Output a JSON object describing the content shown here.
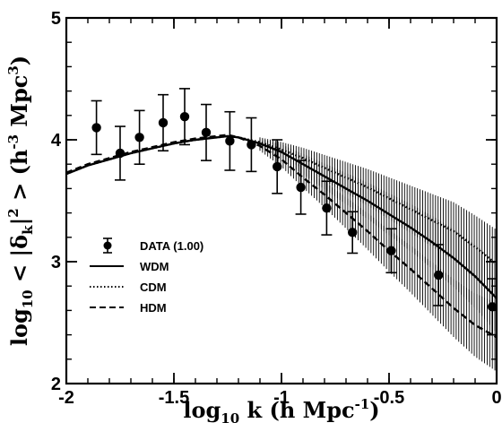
{
  "chart_data": {
    "type": "scatter",
    "title": "",
    "xlabel": {
      "main": "log",
      "sub": "10",
      "rest": " k (h Mpc",
      "sup": "-1",
      "close": ")"
    },
    "ylabel": {
      "main": "log",
      "sub": "10",
      "rest1": " < |δ",
      "sub2": "k",
      "rest2": "|",
      "sup": "2",
      "rest3": " > (h",
      "sup2": "-3",
      "rest4": " Mpc",
      "sup3": "3",
      "close": ")"
    },
    "xlim": [
      -2,
      0
    ],
    "ylim": [
      2,
      5
    ],
    "xticks": [
      -2,
      -1.5,
      -1,
      -0.5,
      0
    ],
    "xtick_labels": [
      "-2",
      "-1.5",
      "-1",
      "-0.5",
      "0"
    ],
    "yticks": [
      2,
      3,
      4,
      5
    ],
    "ytick_labels": [
      "2",
      "3",
      "4",
      "5"
    ],
    "legend": {
      "placement": "lower-left",
      "entries": [
        {
          "label": "DATA (1.00)",
          "style": "marker-errorbar"
        },
        {
          "label": "WDM",
          "style": "solid"
        },
        {
          "label": "CDM",
          "style": "dotted"
        },
        {
          "label": "HDM",
          "style": "dashed"
        }
      ]
    },
    "series": [
      {
        "name": "DATA (1.00)",
        "kind": "errorbar",
        "x": [
          -1.86,
          -1.75,
          -1.66,
          -1.55,
          -1.45,
          -1.35,
          -1.24,
          -1.14,
          -1.02,
          -0.91,
          -0.79,
          -0.67,
          -0.49,
          -0.27,
          -0.02
        ],
        "y": [
          4.1,
          3.89,
          4.02,
          4.14,
          4.19,
          4.06,
          3.99,
          3.96,
          3.78,
          3.61,
          3.44,
          3.24,
          3.09,
          2.89,
          2.63
        ],
        "err": [
          0.22,
          0.22,
          0.22,
          0.23,
          0.23,
          0.23,
          0.24,
          0.22,
          0.22,
          0.22,
          0.22,
          0.17,
          0.18,
          0.25,
          0.23
        ]
      },
      {
        "name": "WDM",
        "kind": "line",
        "dash": "solid",
        "x": [
          -2.0,
          -1.9,
          -1.8,
          -1.7,
          -1.6,
          -1.5,
          -1.4,
          -1.3,
          -1.25,
          -1.2,
          -1.1,
          -1.0,
          -0.9,
          -0.8,
          -0.7,
          -0.6,
          -0.5,
          -0.4,
          -0.3,
          -0.2,
          -0.1,
          0.0
        ],
        "y": [
          3.72,
          3.79,
          3.84,
          3.89,
          3.93,
          3.97,
          4.0,
          4.02,
          4.03,
          4.02,
          3.97,
          3.9,
          3.8,
          3.7,
          3.6,
          3.5,
          3.39,
          3.28,
          3.16,
          3.03,
          2.88,
          2.7
        ]
      },
      {
        "name": "CDM",
        "kind": "line",
        "dash": "dotted",
        "x": [
          -2.0,
          -1.9,
          -1.8,
          -1.7,
          -1.6,
          -1.5,
          -1.4,
          -1.3,
          -1.25,
          -1.2,
          -1.1,
          -1.0,
          -0.9,
          -0.8,
          -0.7,
          -0.6,
          -0.5,
          -0.4,
          -0.3,
          -0.2,
          -0.1,
          0.0
        ],
        "y": [
          3.72,
          3.79,
          3.84,
          3.89,
          3.93,
          3.97,
          4.0,
          4.02,
          4.03,
          4.02,
          3.98,
          3.92,
          3.85,
          3.77,
          3.69,
          3.61,
          3.52,
          3.43,
          3.34,
          3.25,
          3.12,
          2.98
        ]
      },
      {
        "name": "HDM",
        "kind": "line",
        "dash": "dashed",
        "x": [
          -2.0,
          -1.9,
          -1.8,
          -1.7,
          -1.6,
          -1.5,
          -1.4,
          -1.3,
          -1.25,
          -1.2,
          -1.1,
          -1.0,
          -0.9,
          -0.8,
          -0.7,
          -0.6,
          -0.5,
          -0.4,
          -0.3,
          -0.2,
          -0.1,
          0.0
        ],
        "y": [
          3.73,
          3.8,
          3.85,
          3.9,
          3.94,
          3.98,
          4.01,
          4.03,
          4.04,
          4.02,
          3.95,
          3.84,
          3.69,
          3.55,
          3.4,
          3.25,
          3.09,
          2.94,
          2.78,
          2.62,
          2.48,
          2.38
        ]
      }
    ]
  }
}
